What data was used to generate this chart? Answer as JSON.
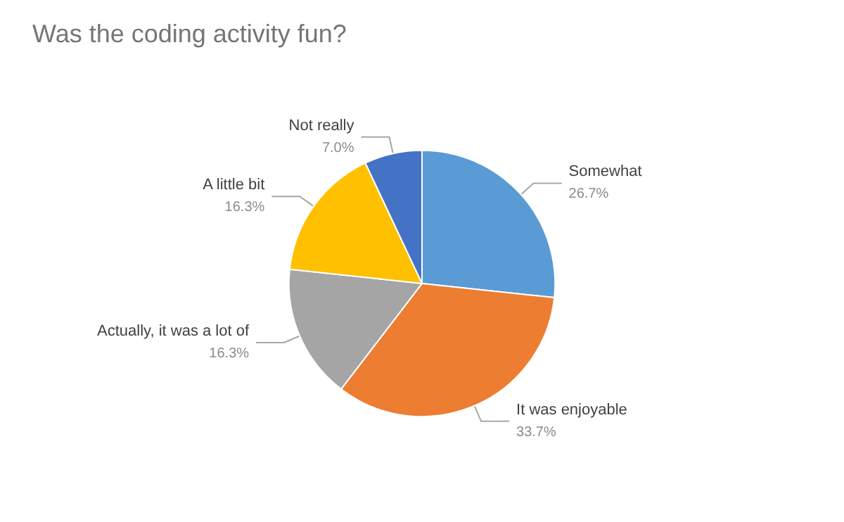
{
  "chart_data": {
    "type": "pie",
    "title": "Was the coding activity fun?",
    "categories": [
      "Somewhat",
      "It was enjoyable",
      "Actually, it was a lot of",
      "A little bit",
      "Not really"
    ],
    "values": [
      26.7,
      33.7,
      16.3,
      16.3,
      7.0
    ],
    "value_labels": [
      "26.7%",
      "33.7%",
      "16.3%",
      "16.3%",
      "7.0%"
    ],
    "colors": [
      "#5b9bd5",
      "#ed7d31",
      "#a5a5a5",
      "#ffc000",
      "#4472c4"
    ],
    "legend": false
  }
}
